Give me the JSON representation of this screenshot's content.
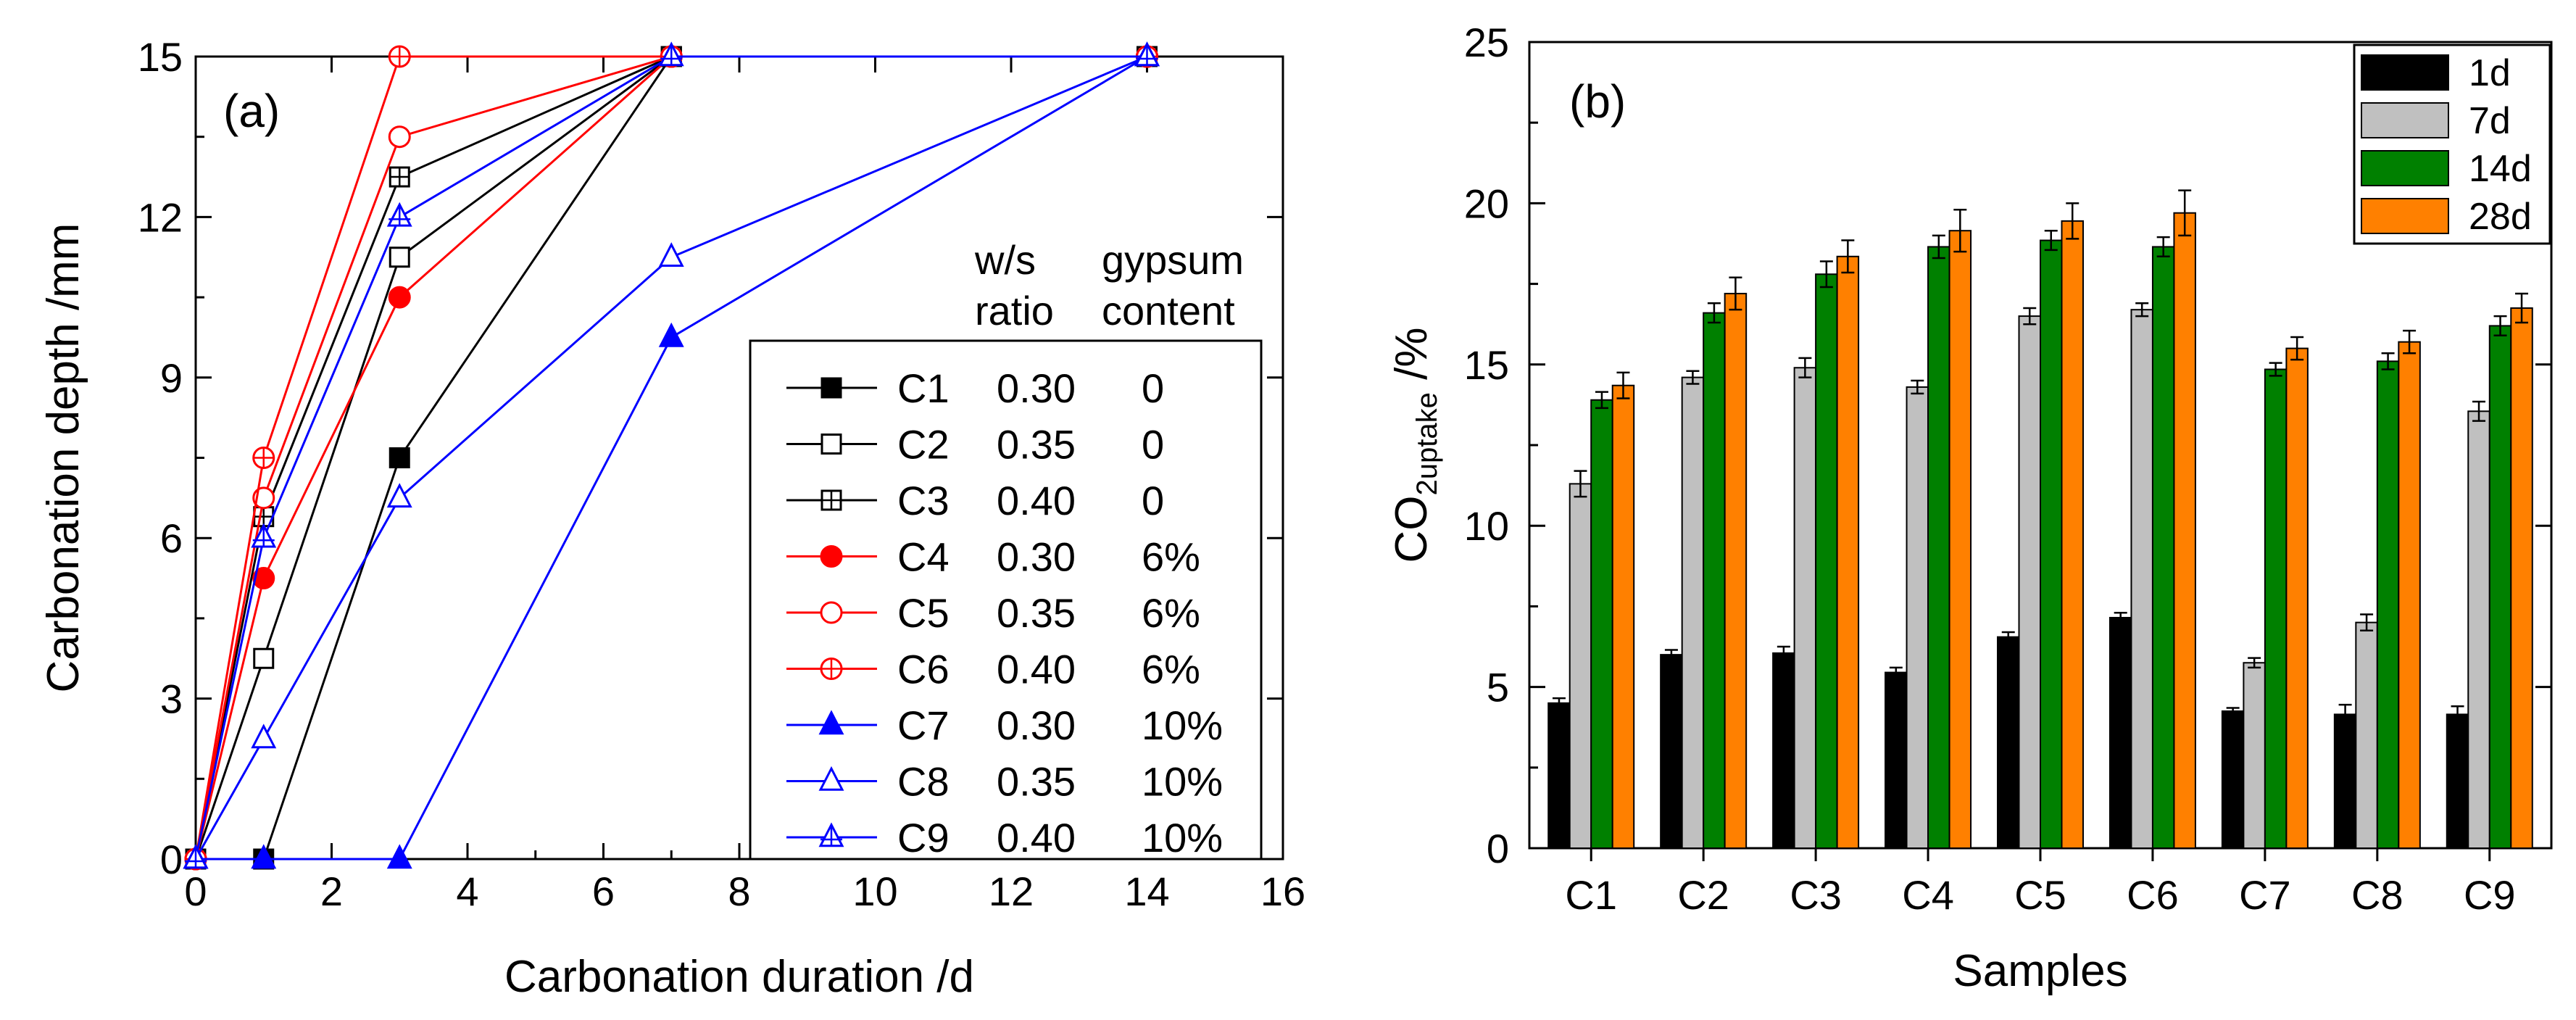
{
  "chart_data": [
    {
      "type": "line",
      "panel_label": "(a)",
      "xlabel": "Carbonation duration /d",
      "ylabel": "Carbonation depth /mm",
      "xlim": [
        0,
        16
      ],
      "ylim": [
        0,
        15
      ],
      "xticks": [
        0,
        2,
        4,
        6,
        8,
        10,
        12,
        14,
        16
      ],
      "yticks": [
        0,
        3,
        6,
        9,
        12,
        15
      ],
      "x": [
        0,
        1,
        3,
        7,
        14
      ],
      "legend_header": {
        "col1": [
          "w/s",
          "ratio"
        ],
        "col2": [
          "gypsum",
          "content"
        ]
      },
      "legend_position": "bottom-right",
      "series": [
        {
          "name": "C1",
          "ws_ratio": "0.30",
          "gypsum": "0",
          "color": "#000000",
          "marker": "square",
          "fill": "filled",
          "values": [
            0,
            0,
            7.5,
            15,
            15
          ]
        },
        {
          "name": "C2",
          "ws_ratio": "0.35",
          "gypsum": "0",
          "color": "#000000",
          "marker": "square",
          "fill": "open",
          "values": [
            0,
            3.75,
            11.25,
            15,
            15
          ]
        },
        {
          "name": "C3",
          "ws_ratio": "0.40",
          "gypsum": "0",
          "color": "#000000",
          "marker": "square",
          "fill": "cross",
          "values": [
            0,
            6.4,
            12.75,
            15,
            15
          ]
        },
        {
          "name": "C4",
          "ws_ratio": "0.30",
          "gypsum": "6%",
          "color": "#ff0000",
          "marker": "circle",
          "fill": "filled",
          "values": [
            0,
            5.25,
            10.5,
            15,
            15
          ]
        },
        {
          "name": "C5",
          "ws_ratio": "0.35",
          "gypsum": "6%",
          "color": "#ff0000",
          "marker": "circle",
          "fill": "open",
          "values": [
            0,
            6.75,
            13.5,
            15,
            15
          ]
        },
        {
          "name": "C6",
          "ws_ratio": "0.40",
          "gypsum": "6%",
          "color": "#ff0000",
          "marker": "circle",
          "fill": "cross",
          "values": [
            0,
            7.5,
            15,
            15,
            15
          ]
        },
        {
          "name": "C7",
          "ws_ratio": "0.30",
          "gypsum": "10%",
          "color": "#0000ff",
          "marker": "triangle",
          "fill": "filled",
          "values": [
            0,
            0,
            0,
            9.75,
            15
          ]
        },
        {
          "name": "C8",
          "ws_ratio": "0.35",
          "gypsum": "10%",
          "color": "#0000ff",
          "marker": "triangle",
          "fill": "open",
          "values": [
            0,
            2.25,
            6.75,
            11.25,
            15
          ]
        },
        {
          "name": "C9",
          "ws_ratio": "0.40",
          "gypsum": "10%",
          "color": "#0000ff",
          "marker": "triangle",
          "fill": "cross",
          "values": [
            0,
            6,
            12,
            15,
            15
          ]
        }
      ]
    },
    {
      "type": "bar",
      "panel_label": "(b)",
      "xlabel": "Samples",
      "ylabel_main": "CO",
      "ylabel_sub": "2uptake",
      "ylabel_tail": " /%",
      "ylim": [
        0,
        25
      ],
      "yticks": [
        0,
        5,
        10,
        15,
        20,
        25
      ],
      "categories": [
        "C1",
        "C2",
        "C3",
        "C4",
        "C5",
        "C6",
        "C7",
        "C8",
        "C9"
      ],
      "legend_position": "top-right",
      "series": [
        {
          "name": "1d",
          "color": "#000000",
          "values": [
            4.5,
            6.0,
            6.05,
            5.45,
            6.55,
            7.15,
            4.25,
            4.15,
            4.15
          ],
          "errors": [
            0.15,
            0.15,
            0.2,
            0.15,
            0.15,
            0.15,
            0.1,
            0.3,
            0.25
          ]
        },
        {
          "name": "7d",
          "color": "#c0c0c0",
          "values": [
            11.3,
            14.6,
            14.9,
            14.3,
            16.5,
            16.7,
            5.75,
            7.0,
            13.55
          ],
          "errors": [
            0.4,
            0.2,
            0.3,
            0.2,
            0.25,
            0.2,
            0.15,
            0.25,
            0.3
          ]
        },
        {
          "name": "14d",
          "color": "#008000",
          "values": [
            13.9,
            16.6,
            17.8,
            18.65,
            18.85,
            18.65,
            14.85,
            15.1,
            16.2
          ],
          "errors": [
            0.25,
            0.3,
            0.4,
            0.35,
            0.3,
            0.3,
            0.2,
            0.25,
            0.3
          ]
        },
        {
          "name": "28d",
          "color": "#ff8000",
          "values": [
            14.35,
            17.2,
            18.35,
            19.15,
            19.45,
            19.7,
            15.5,
            15.7,
            16.75
          ],
          "errors": [
            0.4,
            0.5,
            0.5,
            0.65,
            0.55,
            0.7,
            0.35,
            0.35,
            0.45
          ]
        }
      ]
    }
  ]
}
